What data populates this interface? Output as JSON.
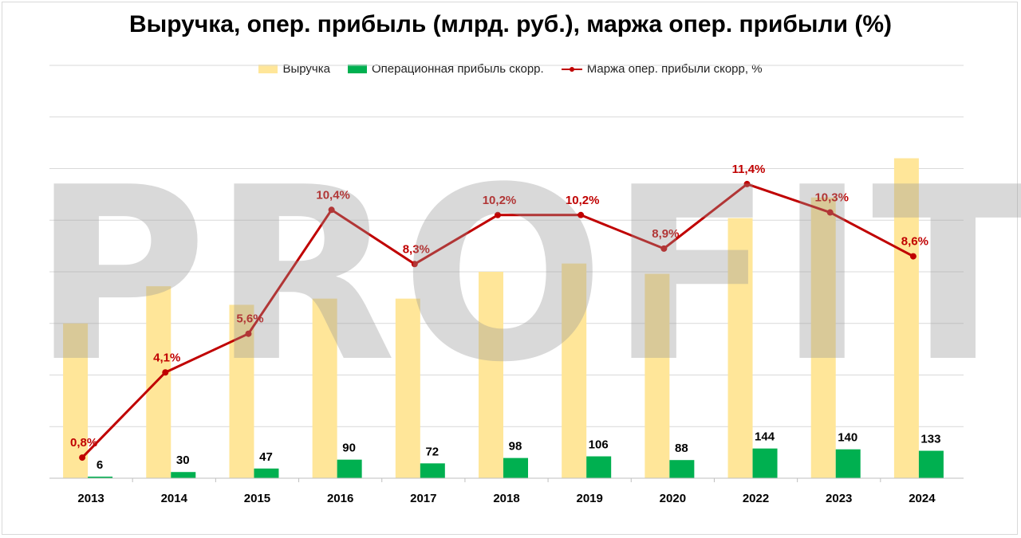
{
  "chart_data": {
    "type": "bar",
    "title": "Выручка, опер. прибыль (млрд. руб.), маржа опер. прибыли (%)",
    "categories": [
      "2013",
      "2014",
      "2015",
      "2016",
      "2017",
      "2018",
      "2019",
      "2020",
      "2022",
      "2023",
      "2024"
    ],
    "series": [
      {
        "name": "Выручка",
        "type": "bar",
        "color": "#ffe699",
        "values": [
          750,
          930,
          840,
          870,
          870,
          1000,
          1040,
          990,
          1260,
          1360,
          1550
        ],
        "labels_shown": false
      },
      {
        "name": "Операционная прибыль скорр.",
        "type": "bar",
        "color": "#00b050",
        "values": [
          6,
          30,
          47,
          90,
          72,
          98,
          106,
          88,
          144,
          140,
          133
        ],
        "labels": [
          "6",
          "30",
          "47",
          "90",
          "72",
          "98",
          "106",
          "88",
          "144",
          "140",
          "133"
        ]
      },
      {
        "name": "Маржа опер. прибыли скорр, %",
        "type": "line",
        "axis": "secondary",
        "color": "#c00000",
        "values": [
          0.8,
          4.1,
          5.6,
          10.4,
          8.3,
          10.2,
          10.2,
          8.9,
          11.4,
          10.3,
          8.6
        ],
        "labels": [
          "0,8%",
          "4,1%",
          "5,6%",
          "10,4%",
          "8,3%",
          "10,2%",
          "10,2%",
          "8,9%",
          "11,4%",
          "10,3%",
          "8,6%"
        ]
      }
    ],
    "legend_position": "top",
    "grid": true,
    "y_axis_labels_shown": false
  },
  "watermark": "PROFIT"
}
